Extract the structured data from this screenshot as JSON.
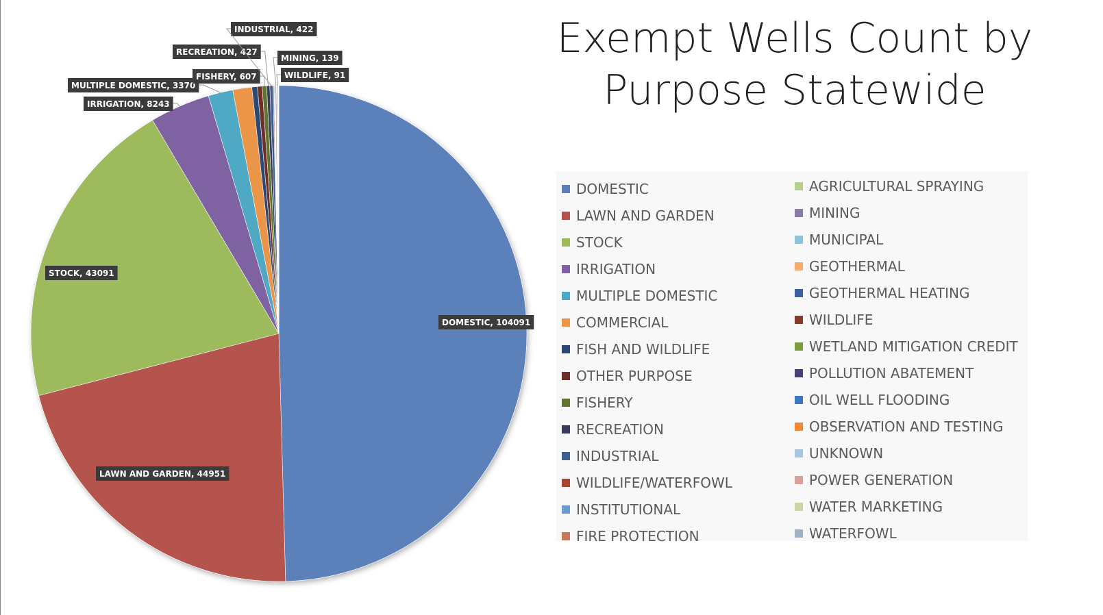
{
  "chart_data": {
    "type": "pie",
    "title": "Exempt Wells Count by Purpose Statewide",
    "start": "12 o'clock, clockwise",
    "legend_position": "right",
    "slices": [
      {
        "name": "DOMESTIC",
        "value": 104091,
        "label": "DOMESTIC, 104091",
        "color": "#5b80b9"
      },
      {
        "name": "LAWN AND GARDEN",
        "value": 44951,
        "label": "LAWN AND GARDEN, 44951",
        "color": "#b5524e"
      },
      {
        "name": "STOCK",
        "value": 43091,
        "label": "STOCK, 43091",
        "color": "#9dbb5c"
      },
      {
        "name": "IRRIGATION",
        "value": 8243,
        "label": "IRRIGATION, 8243",
        "color": "#7e62a1"
      },
      {
        "name": "MULTIPLE DOMESTIC",
        "value": 3370,
        "label": "MULTIPLE DOMESTIC, 3370",
        "color": "#4fa8c4"
      },
      {
        "name": "COMMERCIAL",
        "value": 2600,
        "color": "#eb9549"
      },
      {
        "name": "FISH AND WILDLIFE",
        "value": 750,
        "color": "#2b4873"
      },
      {
        "name": "OTHER PURPOSE",
        "value": 650,
        "color": "#6e2f2a"
      },
      {
        "name": "FISHERY",
        "value": 607,
        "label": "FISHERY, 607",
        "color": "#5f7530"
      },
      {
        "name": "RECREATION",
        "value": 427,
        "label": "RECREATION, 427",
        "color": "#3a3a5a"
      },
      {
        "name": "INDUSTRIAL",
        "value": 422,
        "label": "INDUSTRIAL, 422",
        "color": "#3d5f8f"
      },
      {
        "name": "WILDLIFE/WATERFOWL",
        "value": 120,
        "color": "#a84433"
      },
      {
        "name": "INSTITUTIONAL",
        "value": 90,
        "color": "#6a9bd0"
      },
      {
        "name": "FIRE PROTECTION",
        "value": 60,
        "color": "#c87860"
      },
      {
        "name": "AGRICULTURAL SPRAYING",
        "value": 60,
        "color": "#b4d08a"
      },
      {
        "name": "MINING",
        "value": 139,
        "label": "MINING, 139",
        "color": "#8a7aa8"
      },
      {
        "name": "MUNICIPAL",
        "value": 50,
        "color": "#8ec3dc"
      },
      {
        "name": "GEOTHERMAL",
        "value": 40,
        "color": "#f4ad70"
      },
      {
        "name": "GEOTHERMAL HEATING",
        "value": 30,
        "color": "#3a62a3"
      },
      {
        "name": "WILDLIFE",
        "value": 91,
        "label": "WILDLIFE, 91",
        "color": "#8a3a2a"
      },
      {
        "name": "WETLAND MITIGATION CREDIT",
        "value": 20,
        "color": "#7c9a40"
      },
      {
        "name": "POLLUTION ABATEMENT",
        "value": 20,
        "color": "#4a3f78"
      },
      {
        "name": "OIL WELL FLOODING",
        "value": 15,
        "color": "#3a78c0"
      },
      {
        "name": "OBSERVATION AND TESTING",
        "value": 15,
        "color": "#f08a38"
      },
      {
        "name": "UNKNOWN",
        "value": 15,
        "color": "#a8c4e0"
      },
      {
        "name": "POWER GENERATION",
        "value": 10,
        "color": "#d8a098"
      },
      {
        "name": "WATER MARKETING",
        "value": 10,
        "color": "#c8d8a0"
      },
      {
        "name": "WATERFOWL",
        "value": 10,
        "color": "#a0b0c8"
      }
    ]
  }
}
